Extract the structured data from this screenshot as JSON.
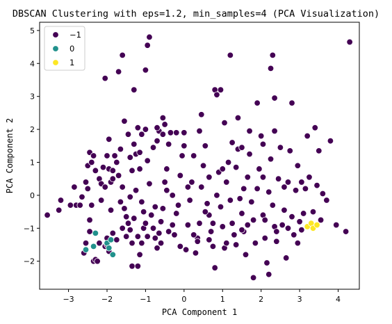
{
  "chart_data": {
    "type": "scatter",
    "title": "DBSCAN Clustering with eps=1.2, min_samples=4 (PCA Visualization)",
    "xlabel": "PCA Component 1",
    "ylabel": "PCA Component 2",
    "xlim": [
      -3.75,
      4.55
    ],
    "ylim": [
      -2.85,
      5.25
    ],
    "xticks": [
      -3,
      -2,
      -1,
      0,
      1,
      2,
      3,
      4
    ],
    "yticks": [
      -2,
      -1,
      0,
      1,
      2,
      3,
      4,
      5
    ],
    "xtick_labels": [
      "−3",
      "−2",
      "−1",
      "0",
      "1",
      "2",
      "3",
      "4"
    ],
    "ytick_labels": [
      "−2",
      "−1",
      "0",
      "1",
      "2",
      "3",
      "4",
      "5"
    ],
    "grid": false,
    "legend_position": "top-left",
    "series": [
      {
        "name": "−1",
        "color": "#440154",
        "points": [
          [
            -3.55,
            -0.6
          ],
          [
            -3.25,
            -0.45
          ],
          [
            -3.2,
            -0.15
          ],
          [
            -2.95,
            -0.3
          ],
          [
            -2.8,
            -0.3
          ],
          [
            -2.6,
            -1.75
          ],
          [
            -2.55,
            -1.45
          ],
          [
            -2.45,
            -1.1
          ],
          [
            -2.4,
            -0.3
          ],
          [
            -2.35,
            -2.0
          ],
          [
            -2.3,
            -1.95
          ],
          [
            -2.45,
            -0.75
          ],
          [
            -2.5,
            0.2
          ],
          [
            -2.55,
            0.4
          ],
          [
            -2.5,
            0.9
          ],
          [
            -2.45,
            1.3
          ],
          [
            -2.4,
            1.0
          ],
          [
            -2.35,
            1.2
          ],
          [
            -2.3,
            0.75
          ],
          [
            -2.2,
            0.5
          ],
          [
            -2.15,
            0.35
          ],
          [
            -2.1,
            0.85
          ],
          [
            -2.05,
            0.25
          ],
          [
            -2.0,
            1.2
          ],
          [
            -1.95,
            0.8
          ],
          [
            -1.9,
            0.4
          ],
          [
            -1.85,
            0.5
          ],
          [
            -1.95,
            1.7
          ],
          [
            -2.05,
            3.55
          ],
          [
            -2.4,
            -0.3
          ],
          [
            -2.2,
            -1.45
          ],
          [
            -2.25,
            -2.0
          ],
          [
            -2.0,
            -1.3
          ],
          [
            -2.05,
            -1.55
          ],
          [
            -1.85,
            -1.15
          ],
          [
            -1.8,
            1.2
          ],
          [
            -1.75,
            1.0
          ],
          [
            -1.7,
            0.6
          ],
          [
            -1.65,
            1.4
          ],
          [
            -1.6,
            0.25
          ],
          [
            -1.55,
            -0.4
          ],
          [
            -1.5,
            -0.65
          ],
          [
            -1.45,
            -0.85
          ],
          [
            -1.4,
            -1.05
          ],
          [
            -1.35,
            -1.45
          ],
          [
            -1.3,
            -0.7
          ],
          [
            -1.25,
            0.15
          ],
          [
            -1.2,
            -1.25
          ],
          [
            -1.15,
            -1.8
          ],
          [
            -1.1,
            -1.45
          ],
          [
            -1.05,
            -1.0
          ],
          [
            -1.0,
            -0.85
          ],
          [
            -1.05,
            -0.5
          ],
          [
            -1.35,
            0.75
          ],
          [
            -1.4,
            1.15
          ],
          [
            -1.3,
            1.55
          ],
          [
            -1.25,
            1.25
          ],
          [
            -1.15,
            1.3
          ],
          [
            -1.1,
            1.85
          ],
          [
            -1.0,
            2.0
          ],
          [
            -0.95,
            1.05
          ],
          [
            -0.9,
            0.35
          ],
          [
            -0.85,
            -0.6
          ],
          [
            -0.8,
            -1.0
          ],
          [
            -0.75,
            -1.3
          ],
          [
            -0.7,
            -1.6
          ],
          [
            -0.65,
            -1.15
          ],
          [
            -0.6,
            -0.8
          ],
          [
            -0.55,
            -0.4
          ],
          [
            -0.5,
            0.4
          ],
          [
            -0.45,
            0.8
          ],
          [
            -0.4,
            1.55
          ],
          [
            -0.35,
            1.9
          ],
          [
            -0.3,
            -0.9
          ],
          [
            -0.25,
            -1.2
          ],
          [
            -0.2,
            -0.55
          ],
          [
            -0.15,
            -0.3
          ],
          [
            -0.1,
            0.6
          ],
          [
            -0.05,
            1.2
          ],
          [
            0.0,
            1.5
          ],
          [
            0.05,
            -1.65
          ],
          [
            0.1,
            -0.9
          ],
          [
            0.15,
            -0.15
          ],
          [
            0.2,
            0.4
          ],
          [
            0.25,
            1.2
          ],
          [
            0.3,
            -1.75
          ],
          [
            0.35,
            -1.3
          ],
          [
            0.4,
            -0.85
          ],
          [
            0.45,
            0.25
          ],
          [
            0.5,
            0.9
          ],
          [
            0.55,
            1.5
          ],
          [
            0.6,
            -0.25
          ],
          [
            0.65,
            -0.6
          ],
          [
            0.7,
            -1.1
          ],
          [
            0.75,
            -1.55
          ],
          [
            0.8,
            -2.2
          ],
          [
            0.85,
            0.0
          ],
          [
            0.9,
            0.7
          ],
          [
            0.95,
            -0.35
          ],
          [
            1.0,
            -0.95
          ],
          [
            1.05,
            -1.6
          ],
          [
            1.1,
            0.4
          ],
          [
            1.15,
            1.0
          ],
          [
            1.2,
            -0.15
          ],
          [
            1.25,
            -0.85
          ],
          [
            1.3,
            -1.2
          ],
          [
            1.35,
            0.85
          ],
          [
            1.4,
            1.4
          ],
          [
            1.45,
            -0.1
          ],
          [
            1.5,
            -0.55
          ],
          [
            1.55,
            -1.1
          ],
          [
            1.6,
            -1.8
          ],
          [
            1.65,
            0.55
          ],
          [
            1.7,
            1.25
          ],
          [
            1.75,
            -0.2
          ],
          [
            1.8,
            -0.75
          ],
          [
            1.85,
            -1.45
          ],
          [
            1.9,
            0.2
          ],
          [
            1.95,
            0.8
          ],
          [
            2.0,
            1.8
          ],
          [
            2.05,
            -0.6
          ],
          [
            2.1,
            -1.3
          ],
          [
            2.15,
            -2.05
          ],
          [
            2.2,
            0.1
          ],
          [
            2.25,
            1.1
          ],
          [
            2.3,
            -0.3
          ],
          [
            2.35,
            -0.95
          ],
          [
            2.4,
            -1.4
          ],
          [
            2.45,
            0.5
          ],
          [
            2.5,
            1.45
          ],
          [
            2.55,
            -0.9
          ],
          [
            2.6,
            -0.45
          ],
          [
            2.65,
            -1.9
          ],
          [
            2.7,
            0.4
          ],
          [
            2.75,
            1.35
          ],
          [
            2.8,
            -0.65
          ],
          [
            2.85,
            -1.2
          ],
          [
            2.9,
            0.15
          ],
          [
            2.95,
            0.9
          ],
          [
            3.0,
            -0.8
          ],
          [
            3.05,
            -1.05
          ],
          [
            3.1,
            -0.55
          ],
          [
            3.15,
            0.2
          ],
          [
            3.25,
            0.55
          ],
          [
            3.35,
            -0.5
          ],
          [
            3.45,
            0.3
          ],
          [
            3.5,
            1.35
          ],
          [
            3.6,
            0.05
          ],
          [
            3.7,
            -0.15
          ],
          [
            3.8,
            1.65
          ],
          [
            4.2,
            -1.1
          ],
          [
            4.3,
            4.65
          ],
          [
            -0.9,
            4.8
          ],
          [
            -0.95,
            4.55
          ],
          [
            -1.6,
            4.25
          ],
          [
            -1.7,
            3.75
          ],
          [
            -1.0,
            3.8
          ],
          [
            -1.3,
            3.2
          ],
          [
            -0.5,
            2.15
          ],
          [
            -0.55,
            2.35
          ],
          [
            -0.65,
            1.95
          ],
          [
            0.8,
            3.2
          ],
          [
            0.95,
            3.2
          ],
          [
            0.85,
            3.05
          ],
          [
            1.2,
            4.25
          ],
          [
            2.3,
            4.25
          ],
          [
            2.25,
            3.85
          ],
          [
            2.35,
            2.95
          ],
          [
            1.9,
            2.8
          ],
          [
            2.8,
            2.8
          ],
          [
            1.4,
            2.35
          ],
          [
            1.7,
            1.95
          ],
          [
            2.35,
            1.95
          ],
          [
            3.2,
            1.8
          ],
          [
            3.4,
            2.05
          ],
          [
            0.45,
            2.45
          ],
          [
            -0.2,
            1.9
          ],
          [
            0.0,
            1.9
          ],
          [
            -1.55,
            2.25
          ],
          [
            -1.85,
            0.75
          ],
          [
            -1.65,
            -0.2
          ],
          [
            -1.9,
            -0.45
          ],
          [
            -2.0,
            -1.5
          ],
          [
            -1.95,
            -1.7
          ],
          [
            -1.75,
            -1.35
          ],
          [
            -1.6,
            -1.0
          ],
          [
            -1.5,
            -1.25
          ],
          [
            -1.35,
            -2.15
          ],
          [
            -1.2,
            -2.15
          ],
          [
            -0.95,
            -1.25
          ],
          [
            -0.6,
            -1.45
          ],
          [
            0.35,
            -1.4
          ],
          [
            0.55,
            -0.5
          ],
          [
            0.75,
            -0.85
          ],
          [
            1.35,
            -1.5
          ],
          [
            1.65,
            -0.9
          ],
          [
            2.1,
            -0.75
          ],
          [
            2.4,
            -1.1
          ],
          [
            2.7,
            -1.0
          ],
          [
            3.95,
            -0.9
          ],
          [
            3.55,
            -0.75
          ],
          [
            2.95,
            -1.45
          ],
          [
            2.2,
            -2.4
          ],
          [
            1.8,
            -2.5
          ],
          [
            1.5,
            -1.05
          ],
          [
            1.1,
            -1.45
          ],
          [
            0.65,
            -1.35
          ],
          [
            0.25,
            -1.2
          ],
          [
            -0.1,
            -1.55
          ],
          [
            -0.4,
            -1.1
          ],
          [
            -0.75,
            -0.35
          ],
          [
            -1.1,
            -0.2
          ],
          [
            -1.4,
            -0.05
          ],
          [
            -2.15,
            -0.15
          ],
          [
            -2.7,
            -0.3
          ],
          [
            -2.85,
            0.25
          ],
          [
            -2.65,
            -0.05
          ],
          [
            -1.15,
            0.8
          ],
          [
            -0.45,
            0.15
          ],
          [
            -0.3,
            0.0
          ],
          [
            0.1,
            0.25
          ],
          [
            0.65,
            0.55
          ],
          [
            1.0,
            0.8
          ],
          [
            1.55,
            0.2
          ],
          [
            2.05,
            0.55
          ],
          [
            2.6,
            0.25
          ],
          [
            3.05,
            0.4
          ],
          [
            -0.8,
            1.45
          ],
          [
            -0.7,
            1.65
          ],
          [
            0.4,
            1.95
          ],
          [
            1.05,
            2.2
          ],
          [
            1.25,
            1.6
          ],
          [
            1.5,
            1.45
          ],
          [
            2.05,
            1.55
          ],
          [
            -1.45,
            1.85
          ],
          [
            -1.2,
            2.05
          ],
          [
            -0.55,
            1.85
          ],
          [
            -0.7,
            2.05
          ]
        ]
      },
      {
        "name": "0",
        "color": "#21918c",
        "points": [
          [
            -2.55,
            -1.65
          ],
          [
            -2.35,
            -1.55
          ],
          [
            -2.3,
            -1.15
          ],
          [
            -2.0,
            -1.45
          ],
          [
            -1.95,
            -1.6
          ],
          [
            -1.9,
            -1.35
          ],
          [
            -1.85,
            -1.8
          ]
        ]
      },
      {
        "name": "1",
        "color": "#fde725",
        "points": [
          [
            3.2,
            -0.95
          ],
          [
            3.3,
            -0.85
          ],
          [
            3.35,
            -1.0
          ],
          [
            3.45,
            -0.9
          ]
        ]
      }
    ]
  }
}
